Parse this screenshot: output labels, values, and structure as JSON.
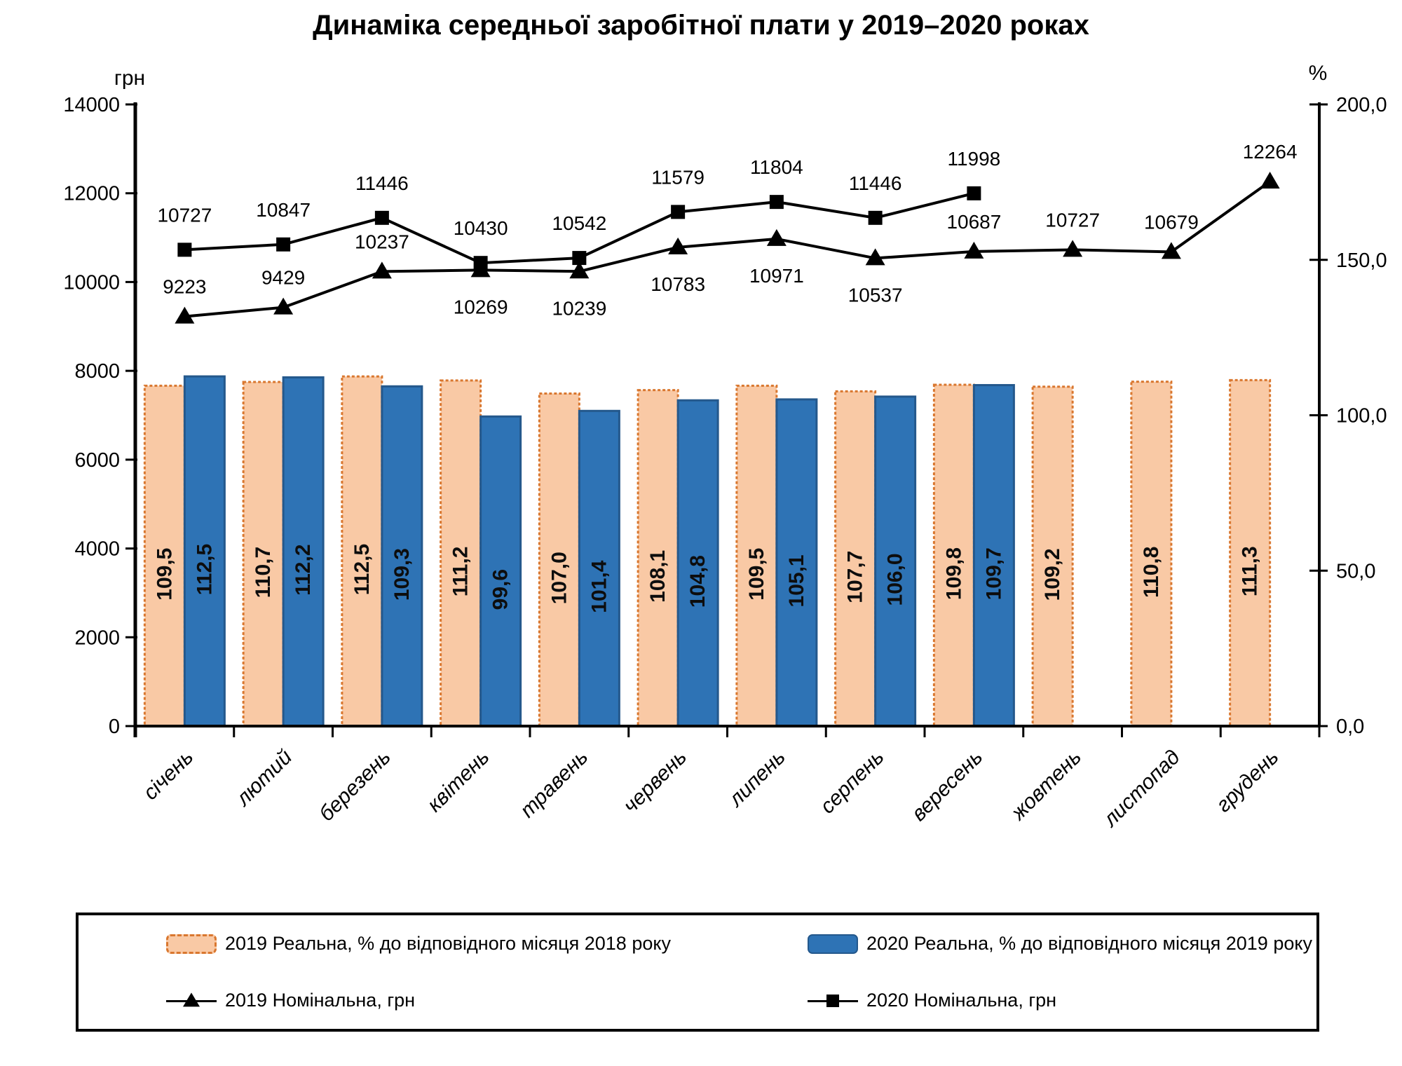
{
  "title": "Динаміка середньої заробітної плати у 2019–2020 роках",
  "left_axis": {
    "unit": "грн",
    "max": 14000,
    "step": 2000,
    "ticks": [
      "14000",
      "12000",
      "10000",
      "8000",
      "6000",
      "4000",
      "2000",
      "0"
    ]
  },
  "right_axis": {
    "unit": "%",
    "max": 200,
    "step": 50,
    "ticks": [
      "200,0",
      "150,0",
      "100,0",
      "50,0",
      "0,0"
    ]
  },
  "colors": {
    "bar_2019_fill": "#F9C9A5",
    "bar_2019_border": "#D9772F",
    "bar_2020_fill": "#2E73B5",
    "bar_2020_border": "#24588C",
    "line_color": "#000000"
  },
  "chart_data": {
    "type": "bar+line combo",
    "categories": [
      "січень",
      "лютий",
      "березень",
      "квітень",
      "травень",
      "червень",
      "липень",
      "серпень",
      "вересень",
      "жовтень",
      "листопад",
      "грудень"
    ],
    "ylim_left": [
      0,
      14000
    ],
    "ylim_right": [
      0,
      200
    ],
    "grid": false,
    "legend_position": "bottom",
    "series": [
      {
        "name": "2019 Реальна, % до відповідного місяця 2018 року",
        "type": "bar",
        "axis": "right",
        "values": [
          109.5,
          110.7,
          112.5,
          111.2,
          107.0,
          108.1,
          109.5,
          107.7,
          109.8,
          109.2,
          110.8,
          111.3
        ],
        "labels": [
          "109,5",
          "110,7",
          "112,5",
          "111,2",
          "107,0",
          "108,1",
          "109,5",
          "107,7",
          "109,8",
          "109,2",
          "110,8",
          "111,3"
        ]
      },
      {
        "name": "2020 Реальна, % до відповідного місяця 2019 року",
        "type": "bar",
        "axis": "right",
        "values": [
          112.5,
          112.2,
          109.3,
          99.6,
          101.4,
          104.8,
          105.1,
          106.0,
          109.7
        ],
        "labels": [
          "112,5",
          "112,2",
          "109,3",
          "99,6",
          "101,4",
          "104,8",
          "105,1",
          "106,0",
          "109,7"
        ]
      },
      {
        "name": "2019 Номінальна, грн",
        "type": "line",
        "marker": "triangle",
        "axis": "left",
        "values": [
          9223,
          9429,
          10237,
          10269,
          10239,
          10783,
          10971,
          10537,
          10687,
          10727,
          10679,
          12264
        ],
        "labels": [
          "9223",
          "9429",
          "10237",
          "10269",
          "10239",
          "10783",
          "10971",
          "10537",
          "10687",
          "10727",
          "10679",
          "12264"
        ],
        "label_pos": [
          "above",
          "above",
          "above",
          "below",
          "below",
          "below",
          "below",
          "below",
          "above",
          "above",
          "above",
          "above"
        ]
      },
      {
        "name": "2020 Номінальна, грн",
        "type": "line",
        "marker": "square",
        "axis": "left",
        "values": [
          10727,
          10847,
          11446,
          10430,
          10542,
          11579,
          11804,
          11446,
          11998
        ],
        "labels": [
          "10727",
          "10847",
          "11446",
          "10430",
          "10542",
          "11579",
          "11804",
          "11446",
          "11998"
        ],
        "label_pos": [
          "above",
          "above",
          "above",
          "above",
          "above",
          "above",
          "above",
          "above",
          "above"
        ]
      }
    ]
  },
  "legend": {
    "items": [
      {
        "key": "bar-2019",
        "label": "2019 Реальна, % до відповідного місяця 2018 року"
      },
      {
        "key": "bar-2020",
        "label": "2020 Реальна, % до відповідного місяця 2019 року"
      },
      {
        "key": "line-2019",
        "label": "2019 Номінальна, грн"
      },
      {
        "key": "line-2020",
        "label": "2020 Номінальна, грн"
      }
    ]
  }
}
